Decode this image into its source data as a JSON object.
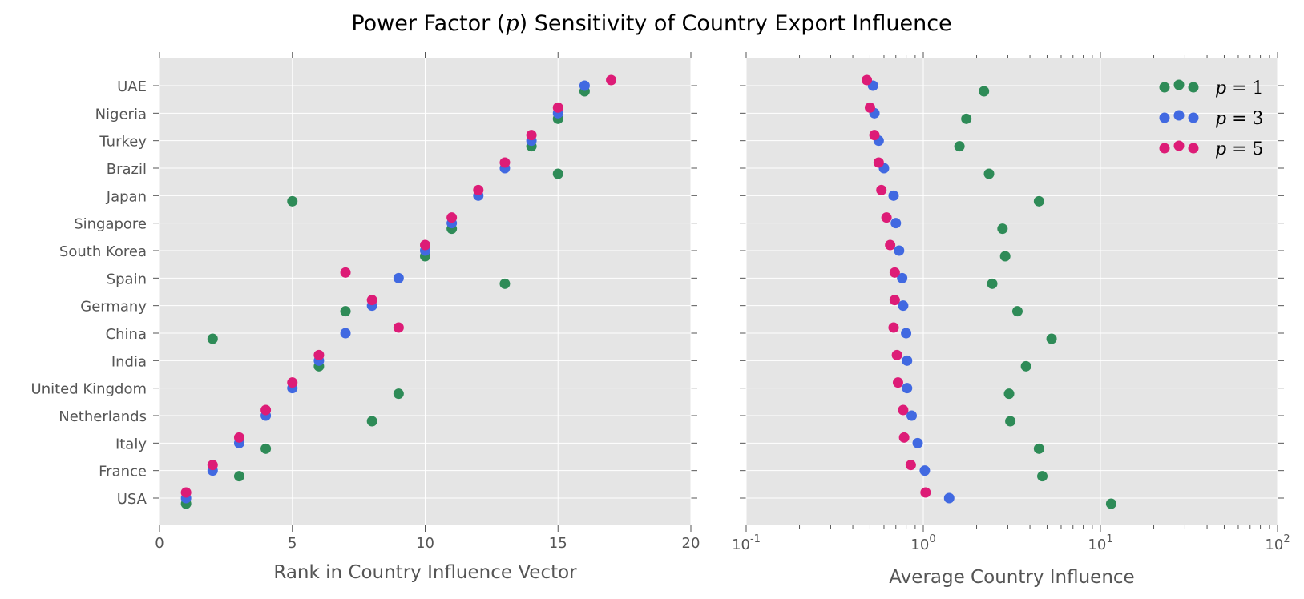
{
  "title_prefix": "Power Factor (",
  "title_var": "p",
  "title_suffix": ") Sensitivity of Country Export Influence",
  "colors": {
    "panel_bg": "#e5e5e5",
    "grid": "#ffffff",
    "text": "#555555",
    "p1": "#2e8b57",
    "p3": "#4169e1",
    "p5": "#dd1c77"
  },
  "chart_data": [
    {
      "type": "scatter",
      "xlabel": "Rank in Country Influence Vector",
      "xlim": [
        0,
        20
      ],
      "xticks": [
        "0",
        "5",
        "10",
        "15",
        "20"
      ],
      "categories": [
        "USA",
        "France",
        "Italy",
        "Netherlands",
        "United Kingdom",
        "India",
        "China",
        "Germany",
        "Spain",
        "South Korea",
        "Singapore",
        "Japan",
        "Brazil",
        "Turkey",
        "Nigeria",
        "UAE"
      ],
      "grid": true,
      "series": [
        {
          "name": "p = 1",
          "color": "#2e8b57",
          "values": [
            1,
            3,
            4,
            8,
            9,
            6,
            2,
            7,
            13,
            10,
            11,
            5,
            15,
            14,
            15,
            16
          ]
        },
        {
          "name": "p = 3",
          "color": "#4169e1",
          "values": [
            1,
            2,
            3,
            4,
            5,
            6,
            7,
            8,
            9,
            10,
            11,
            12,
            13,
            14,
            15,
            16
          ]
        },
        {
          "name": "p = 5",
          "color": "#dd1c77",
          "values": [
            1,
            2,
            3,
            4,
            5,
            6,
            9,
            8,
            7,
            10,
            11,
            12,
            13,
            14,
            15,
            17
          ]
        }
      ]
    },
    {
      "type": "scatter",
      "xlabel": "Average Country Influence",
      "xscale": "log",
      "xlim": [
        0.1,
        100
      ],
      "xticks": [
        {
          "base": "10",
          "exp": "-1"
        },
        {
          "base": "10",
          "exp": "0"
        },
        {
          "base": "10",
          "exp": "1"
        },
        {
          "base": "10",
          "exp": "2"
        }
      ],
      "categories": [
        "USA",
        "France",
        "Italy",
        "Netherlands",
        "United Kingdom",
        "India",
        "China",
        "Germany",
        "Spain",
        "South Korea",
        "Singapore",
        "Japan",
        "Brazil",
        "Turkey",
        "Nigeria",
        "UAE"
      ],
      "grid": true,
      "legend_position": "top-right",
      "legend": [
        {
          "var": "p",
          "op": " = ",
          "num": "1",
          "color": "#2e8b57"
        },
        {
          "var": "p",
          "op": " = ",
          "num": "3",
          "color": "#4169e1"
        },
        {
          "var": "p",
          "op": " = ",
          "num": "5",
          "color": "#dd1c77"
        }
      ],
      "series": [
        {
          "name": "p = 1",
          "color": "#2e8b57",
          "values": [
            11.5,
            4.7,
            4.5,
            3.1,
            3.05,
            3.8,
            5.3,
            3.4,
            2.45,
            2.9,
            2.8,
            4.5,
            2.35,
            1.6,
            1.75,
            2.2
          ]
        },
        {
          "name": "p = 3",
          "color": "#4169e1",
          "values": [
            1.4,
            1.02,
            0.93,
            0.86,
            0.81,
            0.81,
            0.8,
            0.77,
            0.76,
            0.73,
            0.7,
            0.68,
            0.6,
            0.56,
            0.53,
            0.52
          ]
        },
        {
          "name": "p = 5",
          "color": "#dd1c77",
          "values": [
            1.03,
            0.85,
            0.78,
            0.77,
            0.72,
            0.71,
            0.68,
            0.69,
            0.69,
            0.65,
            0.62,
            0.58,
            0.56,
            0.53,
            0.5,
            0.48
          ]
        }
      ]
    }
  ]
}
